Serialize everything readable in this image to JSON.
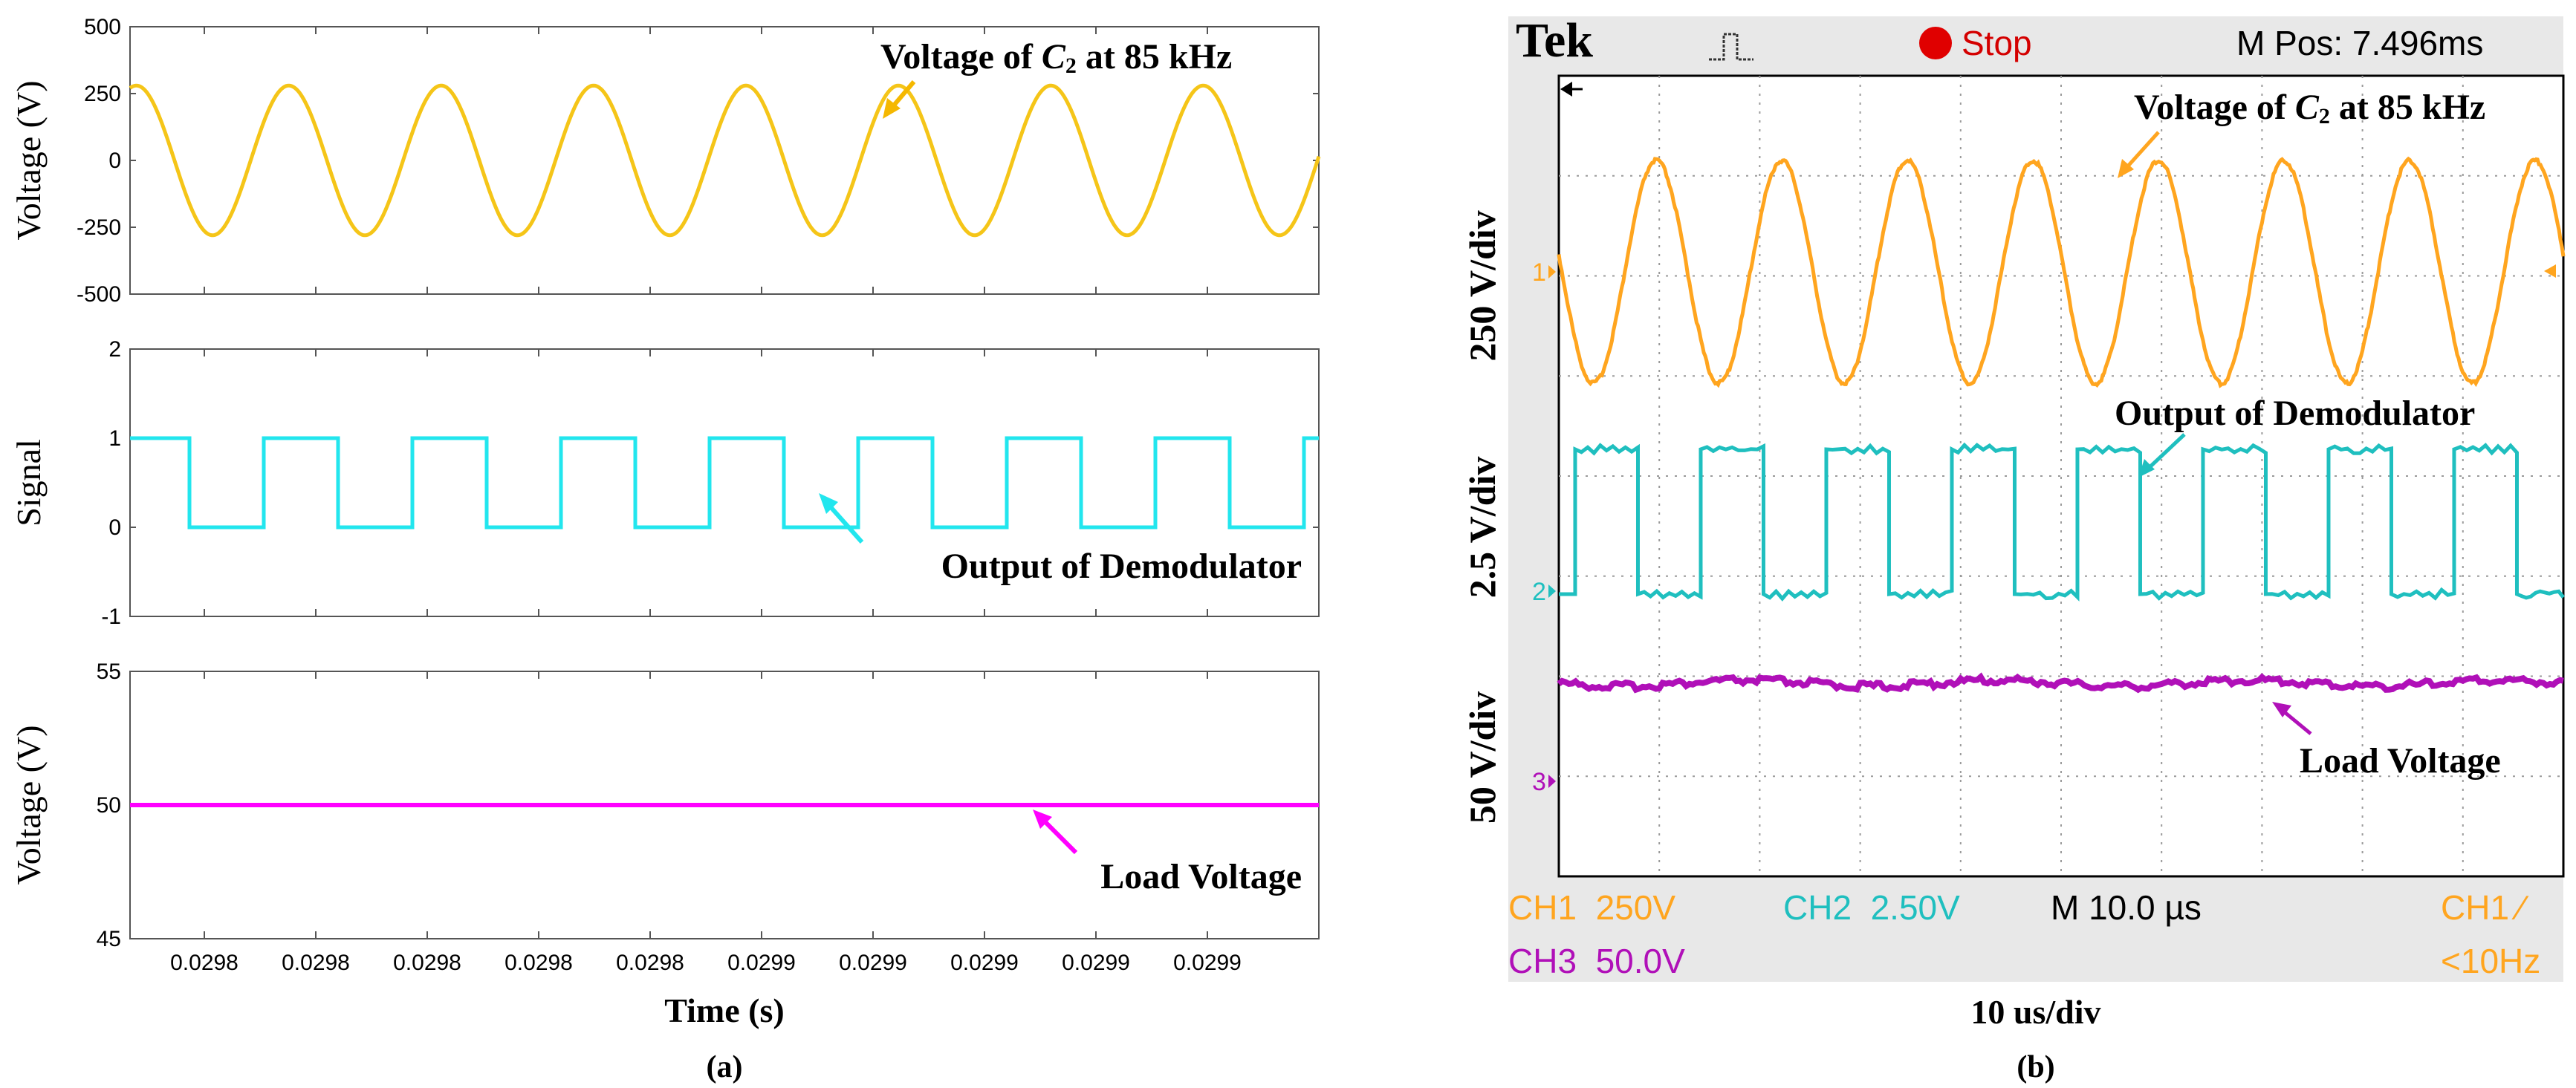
{
  "colors": {
    "sim_voltage": "#f5c518",
    "sim_signal": "#22e6ee",
    "sim_load": "#ff00ff",
    "scope_ch1": "#ffa51f",
    "scope_ch2": "#1fbfbf",
    "scope_ch3": "#b010b8",
    "stop_red": "#e00000"
  },
  "chart_data": [
    {
      "id": "a1",
      "type": "line",
      "title": "",
      "xlabel": "",
      "ylabel": "Voltage (V)",
      "ylim": [
        -500,
        500
      ],
      "yticks": [
        "500",
        "250",
        "0",
        "-250",
        "-500"
      ],
      "series": [
        {
          "name": "Voltage of C2 at 85 kHz",
          "amplitude": 280,
          "offset": 0,
          "cycles": 7.8,
          "start_phase_deg": 75
        }
      ],
      "annotation": {
        "prefix": "Voltage of ",
        "var": "C",
        "sub": "2",
        "suffix": " at 85 kHz"
      }
    },
    {
      "id": "a2",
      "type": "line",
      "title": "",
      "xlabel": "",
      "ylabel": "Signal",
      "ylim": [
        -1,
        2
      ],
      "yticks": [
        "2",
        "1",
        "0",
        "-1"
      ],
      "series": [
        {
          "name": "Output of Demodulator",
          "high": 1,
          "low": 0,
          "cycles": 8,
          "first_low_fraction": 0.05
        }
      ],
      "annotation": "Output of Demodulator"
    },
    {
      "id": "a3",
      "type": "line",
      "title": "",
      "xlabel": "Time (s)",
      "ylabel": "Voltage (V)",
      "ylim": [
        45,
        55
      ],
      "yticks": [
        "55",
        "50",
        "45"
      ],
      "xticks": [
        "0.0298",
        "0.0298",
        "0.0298",
        "0.0298",
        "0.0298",
        "0.0299",
        "0.0299",
        "0.0299",
        "0.0299",
        "0.0299"
      ],
      "series": [
        {
          "name": "Load Voltage",
          "value": 50
        }
      ],
      "annotation": "Load Voltage"
    },
    {
      "id": "b",
      "type": "line",
      "title": "",
      "xlabel": "10 us/div",
      "series": [
        {
          "name": "Voltage of C2 at 85 kHz",
          "channel": "CH1",
          "scale": "250 V/div",
          "cycles": 8
        },
        {
          "name": "Output of Demodulator",
          "channel": "CH2",
          "scale": "2.5 V/div",
          "cycles": 8
        },
        {
          "name": "Load Voltage",
          "channel": "CH3",
          "scale": "50 V/div"
        }
      ],
      "annotations": {
        "ch1": {
          "prefix": "Voltage of ",
          "var": "C",
          "sub": "2",
          "suffix": " at 85 kHz"
        },
        "ch2": "Output of Demodulator",
        "ch3": "Load Voltage"
      }
    }
  ],
  "panel_a": {
    "caption": "(a)"
  },
  "panel_b": {
    "caption": "(b)"
  },
  "scope": {
    "brand": "Tek",
    "run_state": "Stop",
    "mpos": "M Pos: 7.496ms",
    "ch1_info": "CH1  250V",
    "ch2_info": "CH2  2.50V",
    "timebase": "M 10.0 µs",
    "trigger": "CH1 ∕",
    "ch3_info": "CH3  50.0V",
    "freq": "<10Hz",
    "markers": {
      "ch1": "1",
      "ch2": "2",
      "ch3": "3"
    }
  }
}
